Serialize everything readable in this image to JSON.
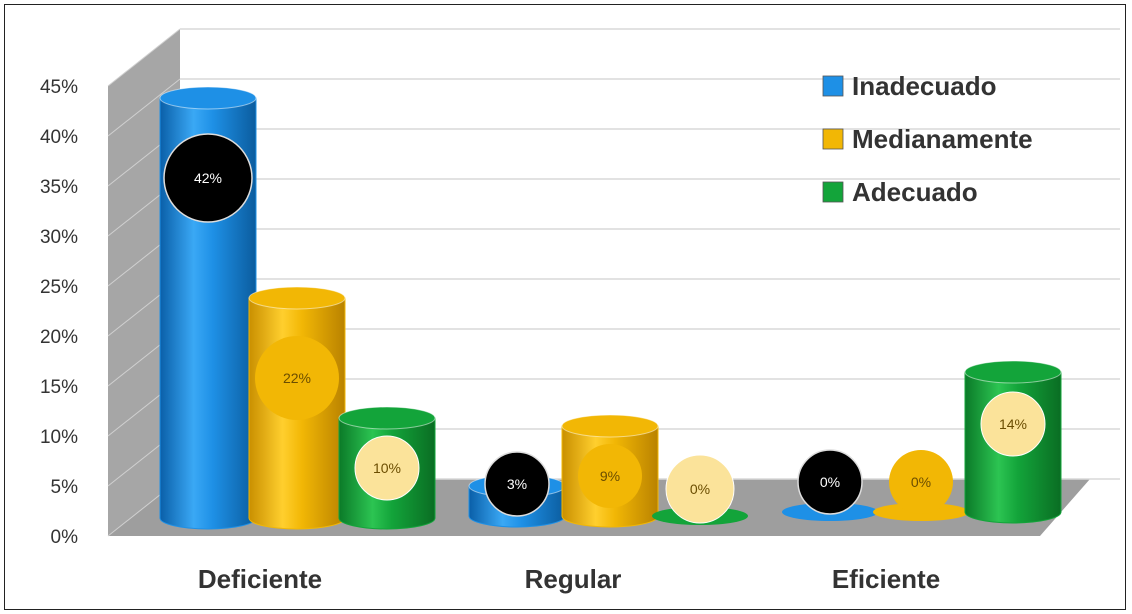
{
  "chart_data": {
    "type": "bar",
    "categories": [
      "Deficiente",
      "Regular",
      "Eficiente"
    ],
    "series": [
      {
        "name": "Inadecuado",
        "values": [
          42,
          3,
          0
        ],
        "labels": [
          "42%",
          "3%",
          "0%"
        ],
        "color": "#1e90e6"
      },
      {
        "name": "Medianamente",
        "values": [
          22,
          9,
          0
        ],
        "labels": [
          "22%",
          "9%",
          "0%"
        ],
        "color": "#f2b705"
      },
      {
        "name": "Adecuado",
        "values": [
          10,
          0,
          14
        ],
        "labels": [
          "10%",
          "0%",
          "14%"
        ],
        "color": "#13a43a"
      }
    ],
    "y_ticks": [
      "0%",
      "5%",
      "10%",
      "15%",
      "20%",
      "25%",
      "30%",
      "35%",
      "40%",
      "45%"
    ],
    "ylim": [
      0,
      45
    ],
    "grid": true,
    "legend_position": "top-right",
    "style": "3d-cylinder"
  },
  "colors": {
    "blue": "#1e90e6",
    "yellow": "#f2b705",
    "green": "#13a43a",
    "wall": "#a6a6a6",
    "floor": "#9e9e9e",
    "label_light": "#fbe39a",
    "label_dark": "#000000"
  }
}
